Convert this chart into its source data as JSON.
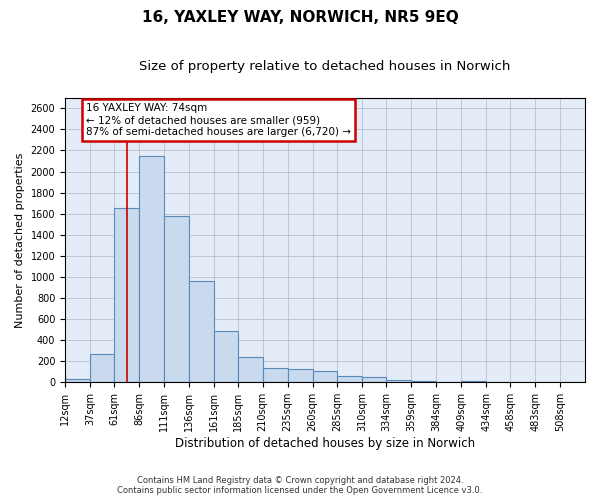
{
  "title": "16, YAXLEY WAY, NORWICH, NR5 9EQ",
  "subtitle": "Size of property relative to detached houses in Norwich",
  "xlabel": "Distribution of detached houses by size in Norwich",
  "ylabel": "Number of detached properties",
  "footer_line1": "Contains HM Land Registry data © Crown copyright and database right 2024.",
  "footer_line2": "Contains public sector information licensed under the Open Government Licence v3.0.",
  "bar_edges": [
    12,
    37,
    61,
    86,
    111,
    136,
    161,
    185,
    210,
    235,
    260,
    285,
    310,
    334,
    359,
    384,
    409,
    434,
    458,
    483,
    508
  ],
  "bar_heights": [
    30,
    270,
    1650,
    2150,
    1580,
    960,
    490,
    240,
    140,
    130,
    110,
    60,
    50,
    20,
    15,
    5,
    12,
    3,
    5,
    0,
    2
  ],
  "bar_color": "#c9d9ee",
  "bar_edgecolor": "#5a8ab8",
  "bar_linewidth": 0.8,
  "grid_color": "#b0b8d0",
  "bg_color": "#e4ecf7",
  "ylim": [
    0,
    2700
  ],
  "yticks": [
    0,
    200,
    400,
    600,
    800,
    1000,
    1200,
    1400,
    1600,
    1800,
    2000,
    2200,
    2400,
    2600
  ],
  "property_size": 74,
  "vline_color": "#cc0000",
  "annotation_line1": "16 YAXLEY WAY: 74sqm",
  "annotation_line2": "← 12% of detached houses are smaller (959)",
  "annotation_line3": "87% of semi-detached houses are larger (6,720) →",
  "annotation_box_color": "#cc0000",
  "title_fontsize": 11,
  "subtitle_fontsize": 9.5,
  "xlabel_fontsize": 8.5,
  "ylabel_fontsize": 8,
  "tick_fontsize": 7,
  "annotation_fontsize": 7.5
}
